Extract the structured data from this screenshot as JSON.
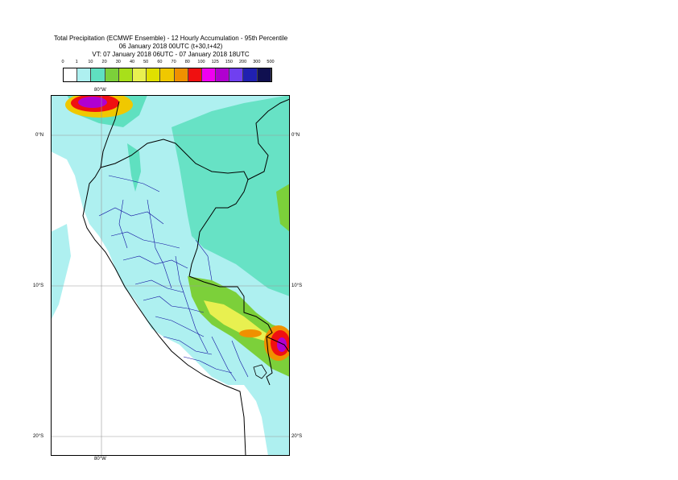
{
  "title": {
    "line1": "Total Precipitation (ECMWF Ensemble) - 12 Hourly Accumulation - 95th Percentile",
    "line2": "06 January 2018 00UTC (t+30,t+42)",
    "line3": "VT: 07 January 2018 06UTC - 07 January 2018 18UTC"
  },
  "legend": {
    "labels": [
      "0",
      "1",
      "10",
      "20",
      "30",
      "40",
      "50",
      "60",
      "70",
      "80",
      "100",
      "125",
      "150",
      "200",
      "300",
      "500"
    ],
    "colors": [
      "#ffffff",
      "#aef0f0",
      "#5fe0c0",
      "#7cd03a",
      "#a8e01a",
      "#e8f050",
      "#e0e000",
      "#f0c800",
      "#f09000",
      "#f01010",
      "#f000f0",
      "#b000d0",
      "#7040f0",
      "#2020b0",
      "#101050"
    ]
  },
  "axes": {
    "lat_labels": [
      "0°N",
      "10°S",
      "20°S"
    ],
    "lon_labels": [
      "80°W",
      "80°W"
    ]
  }
}
